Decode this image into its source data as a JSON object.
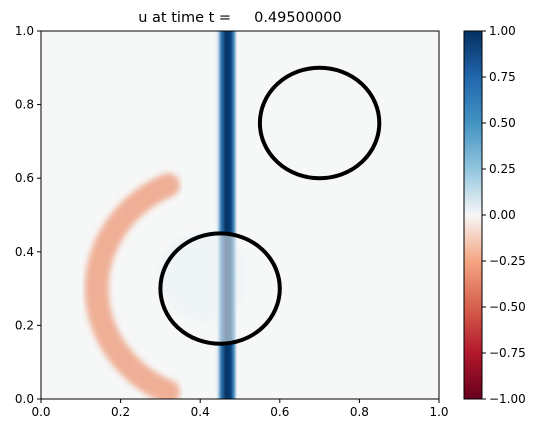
{
  "chart_data": {
    "type": "heatmap",
    "title": "u at time t =     0.49500000",
    "xlabel": "",
    "ylabel": "",
    "xlim": [
      0,
      1
    ],
    "ylim": [
      0,
      1
    ],
    "x_ticks": [
      "0.0",
      "0.2",
      "0.4",
      "0.6",
      "0.8",
      "1.0"
    ],
    "y_ticks": [
      "0.0",
      "0.2",
      "0.4",
      "0.6",
      "0.8",
      "1.0"
    ],
    "grid": false,
    "colormap": "RdBu",
    "colorbar": {
      "vmin": -1.0,
      "vmax": 1.0,
      "ticks": [
        "1.00",
        "0.75",
        "0.50",
        "0.25",
        "0.00",
        "−0.25",
        "−0.50",
        "−0.75",
        "−1.00"
      ],
      "tick_values": [
        1.0,
        0.75,
        0.5,
        0.25,
        0.0,
        -0.25,
        -0.5,
        -0.75,
        -1.0
      ]
    },
    "field_features": {
      "background_value": 0.0,
      "vertical_band": {
        "x_center": 0.465,
        "half_width": 0.03,
        "value": 1.0
      },
      "arc_wave": {
        "center": [
          0.45,
          0.3
        ],
        "radius": 0.31,
        "thickness": 0.06,
        "value": -0.35
      }
    },
    "obstacles": [
      {
        "shape": "circle",
        "center": [
          0.45,
          0.3
        ],
        "radius": 0.15
      },
      {
        "shape": "circle",
        "center": [
          0.7,
          0.75
        ],
        "radius": 0.15
      }
    ]
  }
}
